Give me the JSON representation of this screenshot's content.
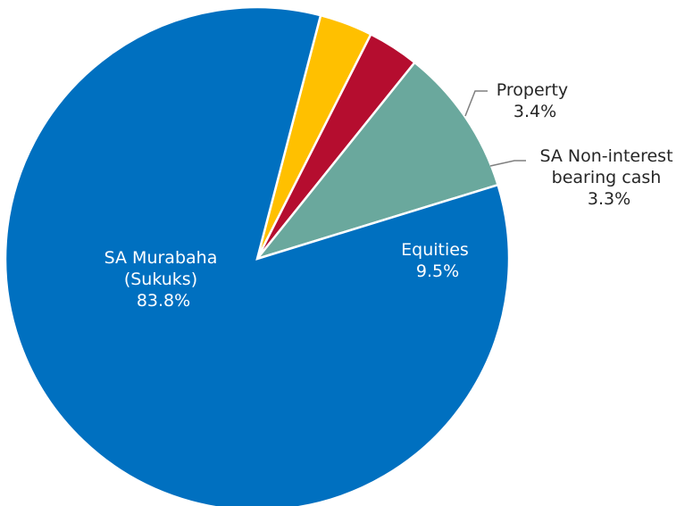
{
  "chart_data": {
    "type": "pie",
    "start_angle_deg": -75.4,
    "direction": "clockwise",
    "slices": [
      {
        "label_lines": [
          "Property"
        ],
        "value_label": "3.4%",
        "value": 3.4,
        "color": "#FFC000",
        "label_color": "#262626"
      },
      {
        "label_lines": [
          "SA Non-interest",
          "bearing cash"
        ],
        "value_label": "3.3%",
        "value": 3.3,
        "color": "#B50D2F",
        "label_color": "#262626"
      },
      {
        "label_lines": [
          "Equities"
        ],
        "value_label": "9.5%",
        "value": 9.5,
        "color": "#6AA89D",
        "label_color": "#ffffff"
      },
      {
        "label_lines": [
          "SA Murabaha",
          "(Sukuks)"
        ],
        "value_label": "83.8%",
        "value": 83.8,
        "color": "#0070C0",
        "label_color": "#ffffff"
      }
    ]
  }
}
